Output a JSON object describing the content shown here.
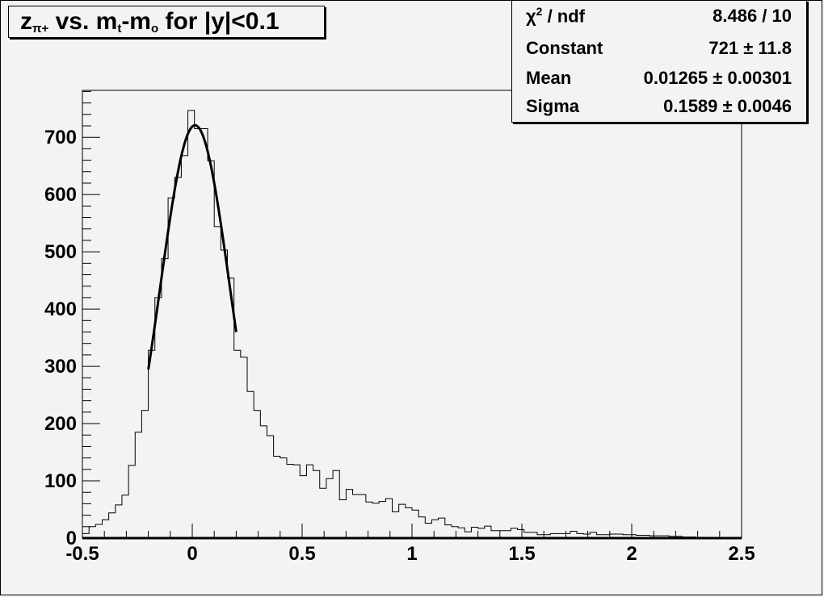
{
  "chart_data": {
    "type": "bar",
    "style": "step-histogram",
    "title": "z_π+ vs. m_t-m_o for |y|<0.1",
    "title_parts": {
      "a": "z",
      "a_sub": "π+",
      "b": " vs. m",
      "b_sub": "t",
      "c": "-m",
      "c_sub": "o",
      "d": " for |y|<0.1"
    },
    "xlabel": "",
    "ylabel": "",
    "xlim": [
      -0.5,
      2.5
    ],
    "ylim": [
      0,
      782
    ],
    "x_ticks": [
      "-0.5",
      "0",
      "0.5",
      "1",
      "1.5",
      "2",
      "2.5"
    ],
    "y_ticks": [
      "0",
      "100",
      "200",
      "300",
      "400",
      "500",
      "600",
      "700"
    ],
    "bin_width": 0.03,
    "bin_start": -0.5,
    "values": [
      8,
      20,
      24,
      32,
      44,
      58,
      75,
      127,
      185,
      223,
      328,
      420,
      488,
      594,
      630,
      668,
      747,
      715,
      715,
      659,
      544,
      503,
      454,
      328,
      316,
      256,
      223,
      196,
      179,
      143,
      140,
      129,
      128,
      109,
      128,
      118,
      87,
      104,
      118,
      67,
      85,
      76,
      76,
      63,
      61,
      64,
      69,
      46,
      59,
      53,
      49,
      37,
      26,
      32,
      35,
      23,
      20,
      18,
      11,
      19,
      17,
      21,
      13,
      13,
      13,
      17,
      15,
      10,
      10,
      6,
      6,
      8,
      8,
      8,
      12,
      8,
      7,
      10,
      6,
      6,
      7,
      7,
      6,
      6,
      5,
      5,
      4,
      4,
      4,
      3,
      3,
      2,
      2,
      1,
      0,
      0,
      0,
      0,
      0,
      0
    ],
    "fit": {
      "function": "gaus",
      "constant": 721,
      "mean": 0.01265,
      "sigma": 0.1589,
      "range": [
        -0.2,
        0.2
      ]
    },
    "grid": false,
    "stats": [
      {
        "label": "χ² / ndf",
        "label_base": "χ",
        "label_sup": "2",
        "label_rest": " / ndf",
        "value": "8.486 / 10"
      },
      {
        "label": "Constant",
        "value": "721 ± 11.8"
      },
      {
        "label": "Mean",
        "value": "0.01265 ± 0.00301"
      },
      {
        "label": "Sigma",
        "value": "0.1589 ± 0.0046"
      }
    ],
    "colors": {
      "background": "#f3f3f3",
      "line": "#000000"
    }
  }
}
